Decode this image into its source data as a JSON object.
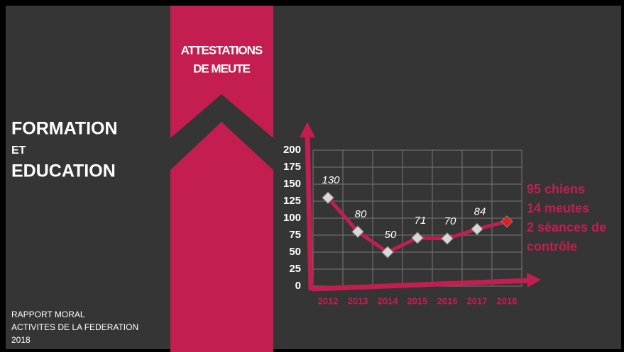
{
  "slide": {
    "heading": [
      "FORMATION",
      "ET",
      "EDUCATION"
    ],
    "footer": [
      "RAPPORT MORAL",
      "ACTIVITES DE LA FEDERATION",
      "2018"
    ],
    "band_title": [
      "ATTESTATIONS",
      "DE MEUTE"
    ]
  },
  "chart_data": {
    "type": "line",
    "categories": [
      "2012",
      "2013",
      "2014",
      "2015",
      "2016",
      "2017",
      "2018"
    ],
    "values": [
      130,
      80,
      50,
      71,
      70,
      84,
      95
    ],
    "value_labels": [
      "130",
      "80",
      "50",
      "71",
      "70",
      "84",
      null
    ],
    "color": "#c41e50",
    "marker_colors": [
      "#d8d8d8",
      "#d8d8d8",
      "#d8d8d8",
      "#d8d8d8",
      "#d8d8d8",
      "#d8d8d8",
      "#e02020"
    ],
    "ylim": [
      0,
      200
    ],
    "yticks": [
      0,
      25,
      50,
      75,
      100,
      125,
      150,
      175,
      200
    ],
    "grid": true,
    "annotation": [
      "95 chiens",
      "14 meutes",
      "2 séances de",
      "contrôle"
    ]
  }
}
